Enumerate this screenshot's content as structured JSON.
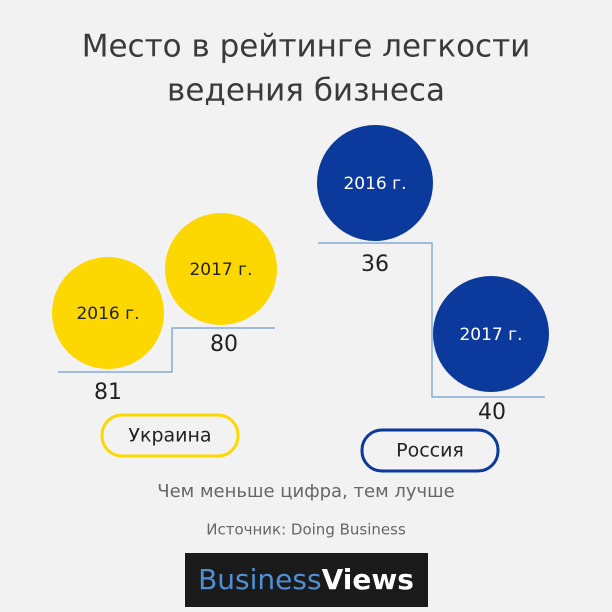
{
  "title": {
    "lines": [
      "Место в рейтинге легкости",
      "ведения бизнеса"
    ]
  },
  "countries": [
    {
      "name": "Украина",
      "entries": [
        {
          "year": "2016 г.",
          "rank": 81
        },
        {
          "year": "2017 г.",
          "rank": 80
        }
      ]
    },
    {
      "name": "Россия",
      "entries": [
        {
          "year": "2016 г.",
          "rank": 36
        },
        {
          "year": "2017 г.",
          "rank": 40
        }
      ]
    }
  ],
  "note": "Чем меньше цифра, тем лучше",
  "source": "Источник: Doing Business",
  "logo": {
    "part1": "Business",
    "part2": "Views"
  }
}
